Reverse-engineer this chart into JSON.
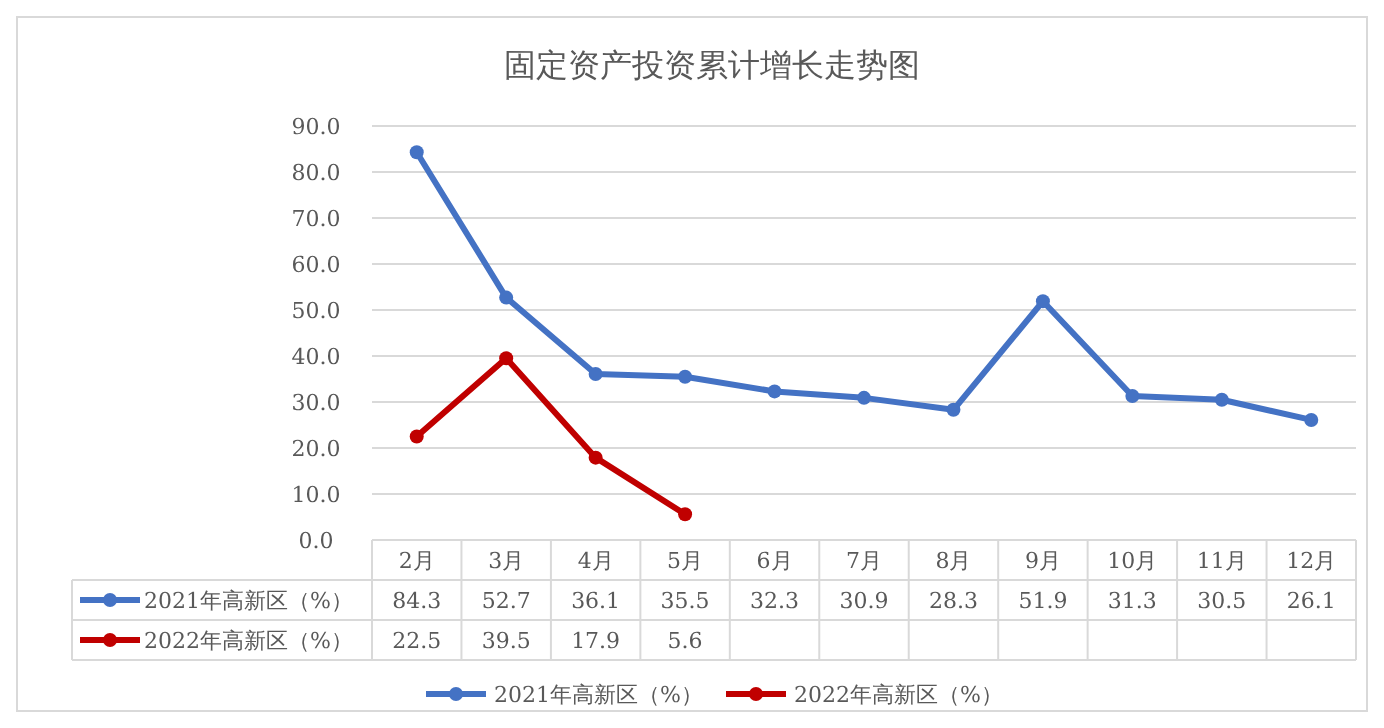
{
  "chart_data": {
    "type": "line",
    "title": "固定资产投资累计增长走势图",
    "categories": [
      "2月",
      "3月",
      "4月",
      "5月",
      "6月",
      "7月",
      "8月",
      "9月",
      "10月",
      "11月",
      "12月"
    ],
    "series": [
      {
        "name": "2021年高新区（%）",
        "color": "#4472c4",
        "values": [
          84.3,
          52.7,
          36.1,
          35.5,
          32.3,
          30.9,
          28.3,
          51.9,
          31.3,
          30.5,
          26.1
        ]
      },
      {
        "name": "2022年高新区（%）",
        "color": "#c00000",
        "values": [
          22.5,
          39.5,
          17.9,
          5.6,
          null,
          null,
          null,
          null,
          null,
          null,
          null
        ]
      }
    ],
    "ylim": [
      0,
      90
    ],
    "yticks": [
      {
        "value": 0,
        "label": "0.0"
      },
      {
        "value": 10,
        "label": "10.0"
      },
      {
        "value": 20,
        "label": "20.0"
      },
      {
        "value": 30,
        "label": "30.0"
      },
      {
        "value": 40,
        "label": "40.0"
      },
      {
        "value": 50,
        "label": "50.0"
      },
      {
        "value": 60,
        "label": "60.0"
      },
      {
        "value": 70,
        "label": "70.0"
      },
      {
        "value": 80,
        "label": "80.0"
      },
      {
        "value": 90,
        "label": "90.0"
      }
    ],
    "grid": "y",
    "legend": "bottom",
    "marker": "circle",
    "line_style": "solid",
    "data_labels": true
  }
}
